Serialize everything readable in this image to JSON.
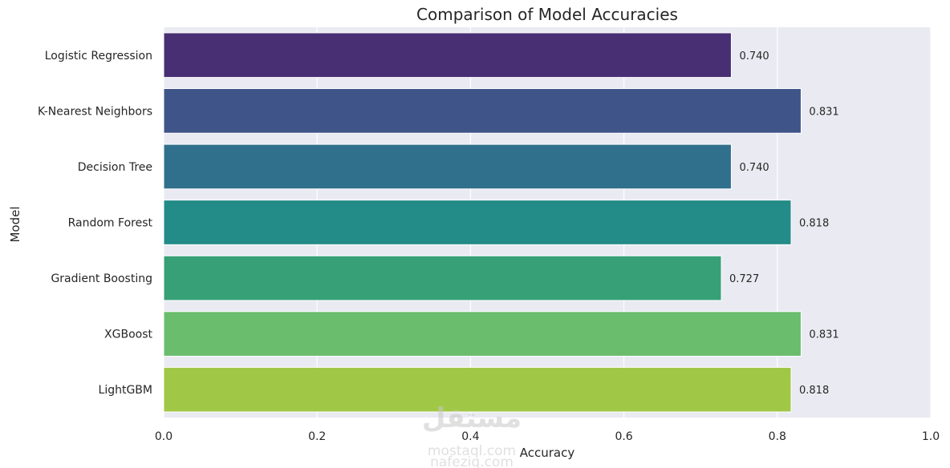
{
  "chart_data": {
    "type": "bar",
    "orientation": "horizontal",
    "title": "Comparison of Model Accuracies",
    "xlabel": "Accuracy",
    "ylabel": "Model",
    "xlim": [
      0,
      1.0
    ],
    "xticks": [
      "0.0",
      "0.2",
      "0.4",
      "0.6",
      "0.8",
      "1.0"
    ],
    "grid": true,
    "categories": [
      "Logistic Regression",
      "K-Nearest Neighbors",
      "Decision Tree",
      "Random Forest",
      "Gradient Boosting",
      "XGBoost",
      "LightGBM"
    ],
    "values": [
      0.74,
      0.831,
      0.74,
      0.818,
      0.727,
      0.831,
      0.818
    ],
    "value_labels": [
      "0.740",
      "0.831",
      "0.740",
      "0.818",
      "0.727",
      "0.831",
      "0.818"
    ],
    "colors": [
      "#482f73",
      "#3f5489",
      "#31708c",
      "#238b88",
      "#37a077",
      "#6abd6d",
      "#a1c746"
    ],
    "background": "#eaeaf2"
  },
  "watermark": {
    "line1": "مستقل",
    "line2": "mostaql.com",
    "line3": "nafeziq.com"
  }
}
